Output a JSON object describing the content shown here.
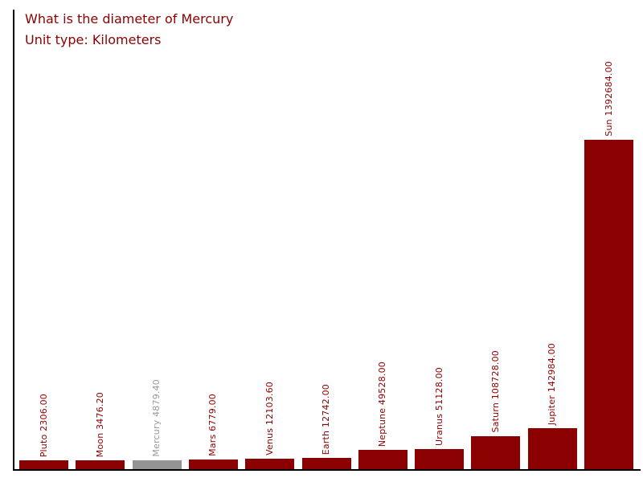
{
  "page": {
    "background_color": "#ffffff"
  },
  "header": {
    "title": "What is the diameter of Mercury",
    "subtitle": "Unit type: Kilometers",
    "text_color": "#8b0000"
  },
  "chart_data": {
    "type": "bar",
    "title": "What is the diameter of Mercury",
    "subtitle": "Unit type: Kilometers",
    "unit": "Kilometers",
    "xlabel": "",
    "ylabel": "",
    "categories": [
      "Pluto",
      "Moon",
      "Mercury",
      "Mars",
      "Venus",
      "Earth",
      "Neptune",
      "Uranus",
      "Saturn",
      "Jupiter",
      "Sun"
    ],
    "values": [
      2306.0,
      3476.2,
      4879.4,
      6779.0,
      12103.6,
      12742.0,
      49528.0,
      51128.0,
      108728.0,
      142984.0,
      1392684.0
    ],
    "bar_labels": [
      "Pluto 2306.00",
      "Moon 3476.20",
      "Mercury 4879.40",
      "Mars 6779.00",
      "Venus 12103.60",
      "Earth 12742.00",
      "Neptune 49528.00",
      "Uranus 51128.00",
      "Saturn 108728.00",
      "Jupiter 142984.00",
      "Sun 1392684.00"
    ],
    "highlighted_category": "Mercury",
    "highlight_index": 2,
    "bar_color": "#8b0000",
    "highlight_bar_color": "#949494",
    "label_color": "#8b0000",
    "highlight_label_color": "#9a9a9a",
    "axis_color": "#000000",
    "ylim": [
      0,
      1392684
    ],
    "grid": false,
    "legend": false,
    "value_labels_rotation_deg": 90
  }
}
